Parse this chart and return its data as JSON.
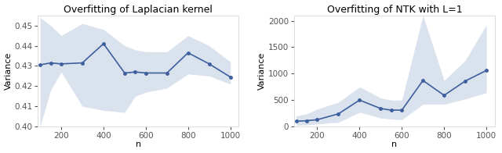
{
  "left": {
    "title": "Overfitting of Laplacian kernel",
    "xlabel": "n",
    "ylabel": "Variance",
    "ylim": [
      0.4,
      0.455
    ],
    "xlim": [
      90,
      1040
    ],
    "x": [
      100,
      150,
      200,
      300,
      400,
      500,
      550,
      600,
      700,
      800,
      900,
      1000
    ],
    "mean": [
      0.4305,
      0.4315,
      0.431,
      0.4315,
      0.441,
      0.4265,
      0.427,
      0.4265,
      0.4265,
      0.4365,
      0.431,
      0.4245
    ],
    "lower": [
      0.4,
      0.418,
      0.427,
      0.41,
      0.408,
      0.407,
      0.415,
      0.417,
      0.419,
      0.426,
      0.425,
      0.421
    ],
    "upper": [
      0.454,
      0.45,
      0.445,
      0.451,
      0.448,
      0.44,
      0.438,
      0.437,
      0.437,
      0.445,
      0.44,
      0.432
    ],
    "xticks": [
      200,
      400,
      600,
      800,
      1000
    ],
    "yticks": [
      0.4,
      0.41,
      0.42,
      0.43,
      0.44,
      0.45
    ]
  },
  "right": {
    "title": "Overfitting of NTK with L=1",
    "xlabel": "n",
    "ylabel": "Variance",
    "ylim": [
      0,
      2100
    ],
    "xlim": [
      90,
      1040
    ],
    "x": [
      100,
      150,
      200,
      300,
      400,
      500,
      550,
      600,
      700,
      800,
      900,
      1000
    ],
    "mean": [
      100,
      110,
      130,
      240,
      500,
      340,
      310,
      310,
      870,
      590,
      860,
      1060
    ],
    "lower": [
      20,
      30,
      50,
      80,
      270,
      160,
      140,
      130,
      420,
      420,
      520,
      640
    ],
    "upper": [
      200,
      240,
      330,
      460,
      750,
      540,
      500,
      500,
      2100,
      870,
      1250,
      1920
    ],
    "xticks": [
      200,
      400,
      600,
      800,
      1000
    ],
    "yticks": [
      0,
      500,
      1000,
      1500,
      2000
    ]
  },
  "line_color": "#3d5f9e",
  "fill_color": "#aec0d9",
  "fill_alpha": 0.45,
  "line_width": 1.2,
  "marker": "o",
  "marker_size": 2.5,
  "title_fontsize": 9,
  "label_fontsize": 8,
  "tick_fontsize": 7.5
}
